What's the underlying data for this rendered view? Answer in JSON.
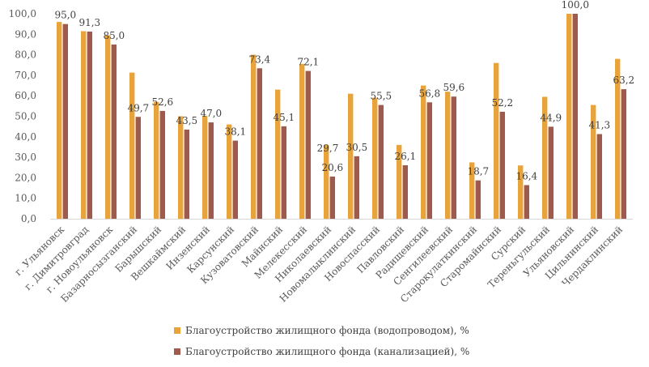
{
  "chart_data": {
    "type": "bar",
    "categories": [
      "г. Ульяновск",
      "г. Димитровград",
      "г. Новоульяновск",
      "Базарносызганский",
      "Барышский",
      "Вешкаймский",
      "Инзенский",
      "Карсунский",
      "Кузоватовский",
      "Майнский",
      "Мелекесский",
      "Николаевский",
      "Новомалыклинский",
      "Новоспасский",
      "Павловский",
      "Радищевский",
      "Сенгилеевский",
      "Старокулаткинский",
      "Старомайнский",
      "Сурский",
      "Тереньгульский",
      "Ульяновский",
      "Цильнинский",
      "Чердаклинский"
    ],
    "series": [
      {
        "name": "Благоустройство жилищного фонда (водопроводом), %",
        "color": "#E8A33A",
        "values": [
          96.0,
          91.5,
          89.5,
          71.3,
          57.0,
          50.0,
          50.2,
          46.0,
          80.0,
          63.0,
          75.5,
          36.0,
          61.0,
          59.0,
          36.0,
          65.0,
          62.0,
          27.5,
          76.0,
          26.0,
          59.5,
          100.0,
          55.5,
          78.0
        ]
      },
      {
        "name": "Благоустройство жилищного фонда (канализацией),  %",
        "color": "#9E5A4C",
        "values": [
          95.0,
          91.3,
          85.0,
          49.7,
          52.6,
          43.5,
          47.0,
          38.1,
          73.4,
          45.1,
          72.1,
          20.6,
          30.5,
          55.5,
          26.1,
          56.8,
          59.6,
          18.7,
          52.2,
          16.4,
          44.9,
          100.0,
          41.3,
          63.2
        ]
      }
    ],
    "data_labels": [
      "95,0",
      "91,3",
      "85,0",
      "49,7",
      "52,6",
      "43,5",
      "47,0",
      "38,1",
      "73,4",
      "45,1",
      "72,1",
      "20,6",
      "30,5",
      "55,5",
      "26,1",
      "56,8",
      "59,6",
      "18,7",
      "52,2",
      "16,4",
      "44,9",
      "100,0",
      "41,3",
      "63,2"
    ],
    "extra_labels": [
      {
        "category_index": 11,
        "text": "29,7"
      }
    ],
    "y_ticks": [
      "0,0",
      "10,0",
      "20,0",
      "30,0",
      "40,0",
      "50,0",
      "60,0",
      "70,0",
      "80,0",
      "90,0",
      "100,0"
    ],
    "ylim": [
      0,
      100
    ],
    "grid": false,
    "legend": "bottom"
  }
}
